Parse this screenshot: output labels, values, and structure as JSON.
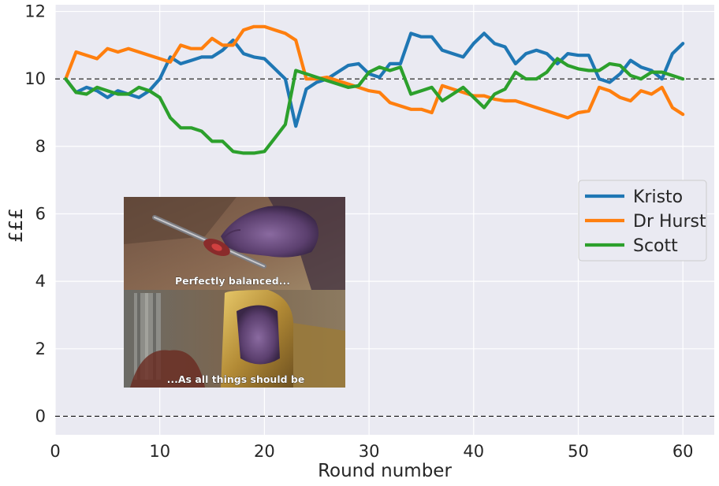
{
  "chart_data": {
    "type": "line",
    "title": "",
    "xlabel": "Round number",
    "ylabel": "£££",
    "xlim": [
      0,
      63
    ],
    "ylim": [
      -0.55,
      12.2
    ],
    "xticks": [
      0,
      10,
      20,
      30,
      40,
      50,
      60
    ],
    "yticks": [
      0,
      2,
      4,
      6,
      8,
      10,
      12
    ],
    "grid": true,
    "legend_position": "center-right",
    "reference_lines": [
      0,
      10
    ],
    "x": [
      1,
      2,
      3,
      4,
      5,
      6,
      7,
      8,
      9,
      10,
      11,
      12,
      13,
      14,
      15,
      16,
      17,
      18,
      19,
      20,
      21,
      22,
      23,
      24,
      25,
      26,
      27,
      28,
      29,
      30,
      31,
      32,
      33,
      34,
      35,
      36,
      37,
      38,
      39,
      40,
      41,
      42,
      43,
      44,
      45,
      46,
      47,
      48,
      49,
      50,
      51,
      52,
      53,
      54,
      55,
      56,
      57,
      58,
      59,
      60
    ],
    "series": [
      {
        "name": "Kristo",
        "color": "#1f77b4",
        "values": [
          10.0,
          9.6,
          9.75,
          9.65,
          9.45,
          9.65,
          9.55,
          9.45,
          9.65,
          10.0,
          10.65,
          10.45,
          10.55,
          10.65,
          10.65,
          10.85,
          11.15,
          10.75,
          10.65,
          10.6,
          10.3,
          10.0,
          8.6,
          9.7,
          9.9,
          10.0,
          10.2,
          10.4,
          10.45,
          10.15,
          10.05,
          10.45,
          10.45,
          11.35,
          11.25,
          11.25,
          10.85,
          10.75,
          10.65,
          11.05,
          11.35,
          11.05,
          10.95,
          10.45,
          10.75,
          10.85,
          10.75,
          10.45,
          10.75,
          10.7,
          10.7,
          10.0,
          9.9,
          10.15,
          10.55,
          10.35,
          10.25,
          10.0,
          10.75,
          11.05
        ]
      },
      {
        "name": "Dr Hurst",
        "color": "#ff7f0e",
        "values": [
          10.0,
          10.8,
          10.7,
          10.6,
          10.9,
          10.8,
          10.9,
          10.8,
          10.7,
          10.6,
          10.5,
          11.0,
          10.9,
          10.9,
          11.2,
          11.0,
          11.0,
          11.45,
          11.55,
          11.55,
          11.45,
          11.35,
          11.15,
          10.0,
          10.0,
          10.05,
          9.95,
          9.85,
          9.75,
          9.65,
          9.6,
          9.3,
          9.2,
          9.1,
          9.1,
          9.0,
          9.8,
          9.7,
          9.6,
          9.5,
          9.5,
          9.4,
          9.35,
          9.35,
          9.25,
          9.15,
          9.05,
          8.95,
          8.85,
          9.0,
          9.05,
          9.75,
          9.65,
          9.45,
          9.35,
          9.65,
          9.55,
          9.75,
          9.15,
          8.95
        ]
      },
      {
        "name": "Scott",
        "color": "#2ca02c",
        "values": [
          10.0,
          9.6,
          9.55,
          9.75,
          9.65,
          9.55,
          9.55,
          9.75,
          9.65,
          9.45,
          8.85,
          8.55,
          8.55,
          8.45,
          8.15,
          8.15,
          7.85,
          7.8,
          7.8,
          7.85,
          8.25,
          8.65,
          10.25,
          10.15,
          10.05,
          9.95,
          9.85,
          9.75,
          9.8,
          10.2,
          10.35,
          10.25,
          10.35,
          9.55,
          9.65,
          9.75,
          9.35,
          9.55,
          9.75,
          9.45,
          9.15,
          9.55,
          9.7,
          10.2,
          10.0,
          10.0,
          10.2,
          10.6,
          10.4,
          10.3,
          10.25,
          10.25,
          10.45,
          10.4,
          10.1,
          10.0,
          10.2,
          10.2,
          10.1,
          10.0
        ]
      }
    ],
    "inset_image": {
      "top_caption": "Perfectly balanced...",
      "bottom_caption": "...As all things should be"
    }
  }
}
